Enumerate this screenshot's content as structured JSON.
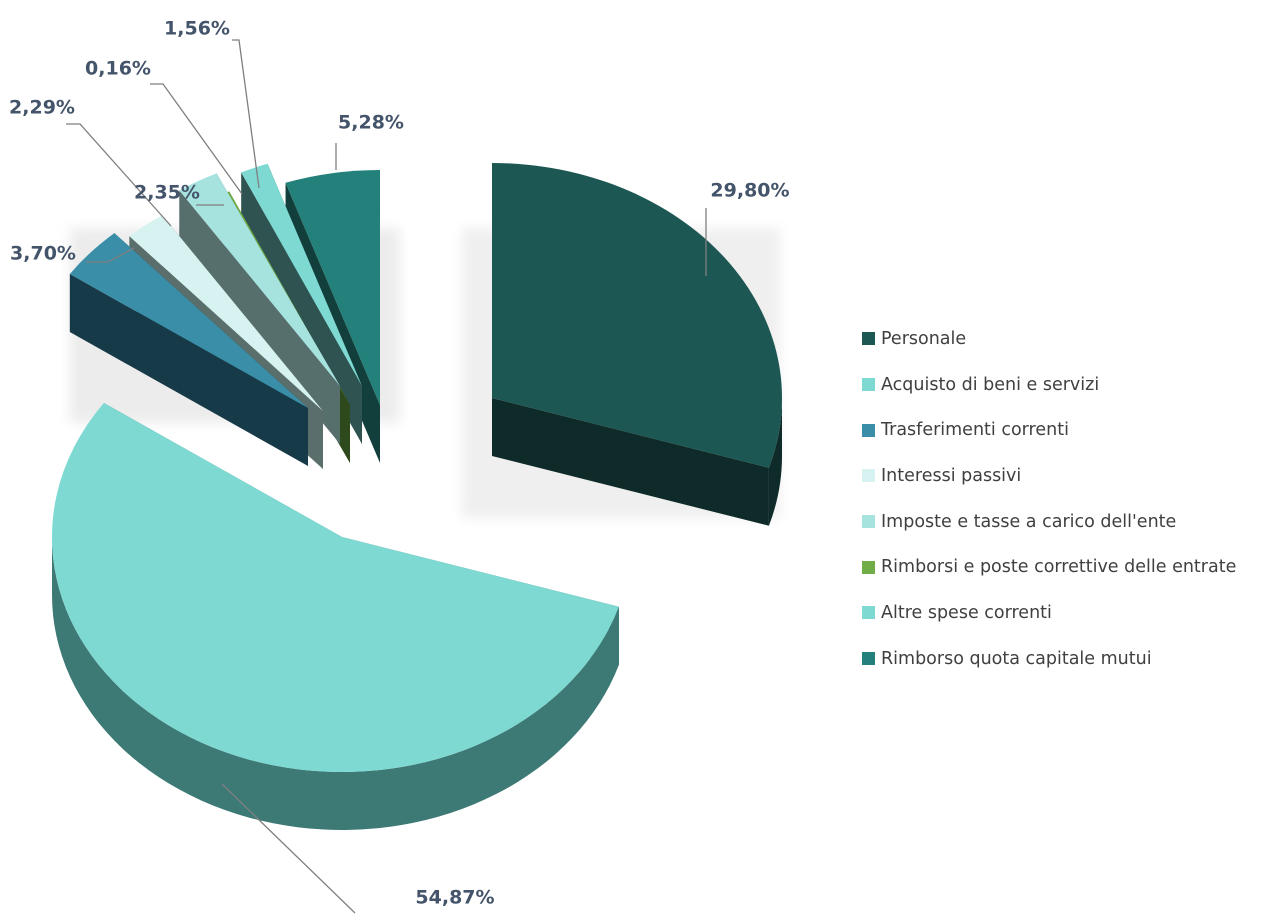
{
  "chart_data": {
    "type": "pie",
    "style": "3d-exploded",
    "legend_position": "right",
    "series": [
      {
        "name": "Personale",
        "value": 29.8,
        "label": "29,80%",
        "color": "#1c5753",
        "side": "#0f2b29"
      },
      {
        "name": "Acquisto di beni e servizi",
        "value": 54.87,
        "label": "54,87%",
        "color": "#7ed9d3",
        "side": "#3d7a76"
      },
      {
        "name": "Trasferimenti correnti",
        "value": 3.7,
        "label": "3,70%",
        "color": "#3a8ea8",
        "side": "#173a48"
      },
      {
        "name": "Interessi passivi",
        "value": 2.29,
        "label": "2,29%",
        "color": "#d6f3f1",
        "side": "#5a6e6c"
      },
      {
        "name": "Imposte e tasse a carico dell'ente",
        "value": 2.35,
        "label": "2,35%",
        "color": "#a6e3df",
        "side": "#566e6c"
      },
      {
        "name": "Rimborsi e poste correttive delle entrate",
        "value": 0.16,
        "label": "0,16%",
        "color": "#70ad47",
        "side": "#2e4a1c"
      },
      {
        "name": "Altre spese correnti",
        "value": 1.56,
        "label": "1,56%",
        "color": "#7ed9d3",
        "side": "#2f5350"
      },
      {
        "name": "Rimborso quota capitale mutui",
        "value": 5.28,
        "label": "5,28%",
        "color": "#24807a",
        "side": "#123e3b"
      }
    ]
  }
}
